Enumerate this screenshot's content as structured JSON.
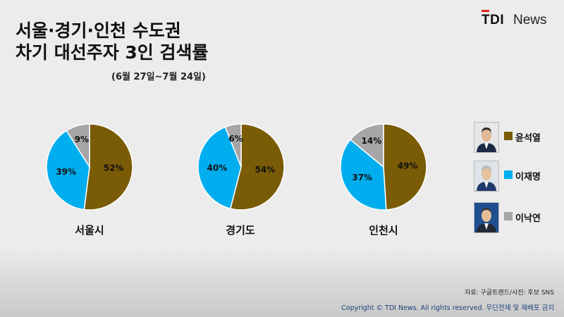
{
  "brand": {
    "logo_tdi": "TDI",
    "logo_news": "News"
  },
  "header": {
    "title_line1": "서울·경기·인천 수도권",
    "title_line2": "차기 대선주자 3인 검색률",
    "period": "(6월 27일~7월 24일)"
  },
  "colors": {
    "yoon": "#7a5b06",
    "lee_jm": "#00aeef",
    "lee_ny": "#a6a6a6"
  },
  "chart_data": [
    {
      "type": "pie",
      "title": "서울시",
      "categories": [
        "윤석열",
        "이재명",
        "이낙연"
      ],
      "values": [
        52,
        39,
        9
      ],
      "labels": [
        "52%",
        "39%",
        "9%"
      ]
    },
    {
      "type": "pie",
      "title": "경기도",
      "categories": [
        "윤석열",
        "이재명",
        "이낙연"
      ],
      "values": [
        54,
        40,
        6
      ],
      "labels": [
        "54%",
        "40%",
        "6%"
      ]
    },
    {
      "type": "pie",
      "title": "인천시",
      "categories": [
        "윤석열",
        "이재명",
        "이낙연"
      ],
      "values": [
        49,
        37,
        14
      ],
      "labels": [
        "49%",
        "37%",
        "14%"
      ]
    }
  ],
  "legend": [
    {
      "name": "윤석열",
      "color": "#7a5b06",
      "icon": "candidate-photo"
    },
    {
      "name": "이재명",
      "color": "#00aeef",
      "icon": "candidate-photo"
    },
    {
      "name": "이낙연",
      "color": "#a6a6a6",
      "icon": "candidate-photo"
    }
  ],
  "footer": {
    "source": "자료: 구글트렌드/사진: 후보 SNS",
    "copyright": "Copyright © TDI News. All rights reserved. 무단전재 및 재배포 금지"
  }
}
